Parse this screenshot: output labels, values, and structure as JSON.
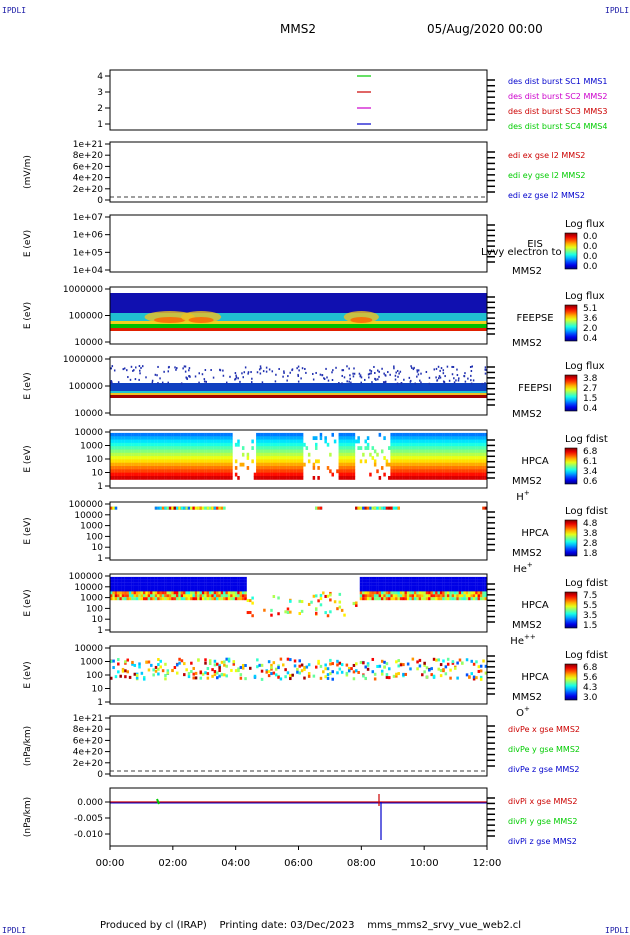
{
  "corners": {
    "tl": "IPDLI",
    "tr": "IPDLI",
    "bl": "IPDLI",
    "br": "IPDLI"
  },
  "header": {
    "title": "MMS2",
    "date": "05/Aug/2020 00:00"
  },
  "footer": "Produced by cl (IRAP)    Printing date: 03/Dec/2023    mms_mms2_srvy_vue_web2.cl",
  "colors": {
    "blue": "#0000cc",
    "magenta": "#cc00cc",
    "red": "#cc0000",
    "green": "#00cc00"
  },
  "chart_data": {
    "type": "heatmap",
    "x_ticks": [
      "00:00",
      "02:00",
      "04:00",
      "06:00",
      "08:00",
      "10:00",
      "12:00"
    ],
    "xlim": [
      0,
      12
    ],
    "panels": [
      {
        "id": "burst",
        "yticks": [
          "1",
          "2",
          "3",
          "4"
        ],
        "ylabel": "",
        "legend": [
          {
            "text": "des dist burst SC1 MMS1",
            "color": "#0000cc"
          },
          {
            "text": "des dist burst SC2 MMS2",
            "color": "#cc00cc"
          },
          {
            "text": "des dist burst SC3 MMS3",
            "color": "#cc0000"
          },
          {
            "text": "des dist burst SC4 MMS4",
            "color": "#00cc00"
          }
        ]
      },
      {
        "id": "edi",
        "yticks": [
          "0",
          "2e+20",
          "4e+20",
          "6e+20",
          "8e+20",
          "1e+21"
        ],
        "ylabel": "(mV/m)",
        "legend": [
          {
            "text": "edi ex gse l2 MMS2",
            "color": "#cc0000"
          },
          {
            "text": "edi ey gse l2 MMS2",
            "color": "#00cc00"
          },
          {
            "text": "edi ez gse l2 MMS2",
            "color": "#0000cc"
          }
        ]
      },
      {
        "id": "eis",
        "yticks": [
          "1e+04",
          "1e+05",
          "1e+06",
          "1e+07"
        ],
        "ylabel": "E (eV)",
        "label1": "EIS",
        "label2": "MMS2",
        "extra": "Lvvy electron to",
        "cb_title": "Log flux",
        "cb_vals": [
          "0.0",
          "0.0",
          "0.0",
          "0.0"
        ]
      },
      {
        "id": "feepse",
        "yticks": [
          "10000",
          "100000",
          "1000000"
        ],
        "ylabel": "E (eV)",
        "label1": "FEEPSE",
        "label2": "MMS2",
        "cb_title": "Log flux",
        "cb_vals": [
          "5.1",
          "3.6",
          "2.0",
          "0.4"
        ]
      },
      {
        "id": "feepsi",
        "yticks": [
          "10000",
          "100000",
          "1000000"
        ],
        "ylabel": "E (eV)",
        "label1": "FEEPSI",
        "label2": "MMS2",
        "cb_title": "Log flux",
        "cb_vals": [
          "3.8",
          "2.7",
          "1.5",
          "0.4"
        ]
      },
      {
        "id": "hpca_h",
        "yticks": [
          "1",
          "10",
          "100",
          "1000",
          "10000"
        ],
        "ylabel": "E (eV)",
        "label1": "HPCA",
        "label2": "MMS2",
        "species": "H",
        "sup": "+",
        "cb_title": "Log fdist",
        "cb_vals": [
          "6.8",
          "6.1",
          "3.4",
          "0.6"
        ]
      },
      {
        "id": "hpca_he",
        "yticks": [
          "1",
          "10",
          "100",
          "1000",
          "10000",
          "100000"
        ],
        "ylabel": "E (eV)",
        "label1": "HPCA",
        "label2": "MMS2",
        "species": "He",
        "sup": "+",
        "cb_title": "Log fdist",
        "cb_vals": [
          "4.8",
          "3.8",
          "2.8",
          "1.8"
        ]
      },
      {
        "id": "hpca_hepp",
        "yticks": [
          "1",
          "10",
          "100",
          "1000",
          "10000",
          "100000"
        ],
        "ylabel": "E (eV)",
        "label1": "HPCA",
        "label2": "MMS2",
        "species": "He",
        "sup": "++",
        "cb_title": "Log fdist",
        "cb_vals": [
          "7.5",
          "5.5",
          "3.5",
          "1.5"
        ]
      },
      {
        "id": "hpca_o",
        "yticks": [
          "1",
          "10",
          "100",
          "1000",
          "10000"
        ],
        "ylabel": "E (eV)",
        "label1": "HPCA",
        "label2": "MMS2",
        "species": "O",
        "sup": "+",
        "cb_title": "Log fdist",
        "cb_vals": [
          "6.8",
          "5.6",
          "4.3",
          "3.0"
        ]
      },
      {
        "id": "divpe",
        "yticks": [
          "0",
          "2e+20",
          "4e+20",
          "6e+20",
          "8e+20",
          "1e+21"
        ],
        "ylabel": "(nPa/km)",
        "legend": [
          {
            "text": "divPe x gse MMS2",
            "color": "#cc0000"
          },
          {
            "text": "divPe y gse MMS2",
            "color": "#00cc00"
          },
          {
            "text": "divPe z gse MMS2",
            "color": "#0000cc"
          }
        ]
      },
      {
        "id": "divpi",
        "yticks": [
          "-0.010",
          "-0.005",
          "0.000"
        ],
        "ylabel": "(nPa/km)",
        "legend": [
          {
            "text": "divPi x gse MMS2",
            "color": "#cc0000"
          },
          {
            "text": "divPi y gse MMS2",
            "color": "#00cc00"
          },
          {
            "text": "divPi z gse MMS2",
            "color": "#0000cc"
          }
        ]
      }
    ]
  }
}
